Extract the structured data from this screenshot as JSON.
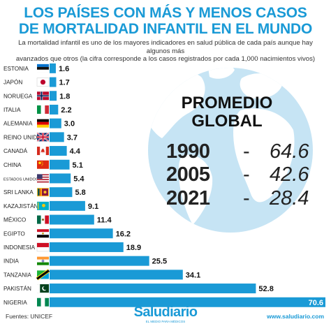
{
  "title_line1": "LOS PAÍSES CON MÁS Y MENOS CASOS",
  "title_line2": "DE MORTALIDAD INFANTIL EN EL MUNDO",
  "subtitle_line1": "La mortalidad infantil es uno de los mayores indicadores en salud pública de cada país aunque hay algunos más",
  "subtitle_line2": "avanzados que otros (la cifra corresponde a los casos registrados por cada 1,000 nacimientos vivos)",
  "average": {
    "title_line1": "PROMEDIO",
    "title_line2": "GLOBAL",
    "dash": "-",
    "rows": [
      {
        "year": "1990",
        "value": "64.6"
      },
      {
        "year": "2005",
        "value": "42.6"
      },
      {
        "year": "2021",
        "value": "28.4"
      }
    ]
  },
  "footer": {
    "source": "Fuentes: UNICEF",
    "logo": "Saludiario",
    "logo_sub": "EL MEDIO PARA MÉDICOS",
    "url": "www.saludiario.com"
  },
  "colors": {
    "accent": "#1a9ad6",
    "bar": "#1a9ad6",
    "ocean": "#c6e4f4",
    "land": "#ffffff"
  },
  "chart_data": {
    "type": "bar",
    "orientation": "horizontal",
    "categories": [
      "ESTONIA",
      "JAPÓN",
      "NORUEGA",
      "ITALIA",
      "ALEMANIA",
      "REINO UNIDO",
      "CANADÁ",
      "CHINA",
      "ESTADOS UNIDOS",
      "SRI LANKA",
      "KAZAJISTÁN",
      "MÉXICO",
      "EGIPTO",
      "INDONESIA",
      "INDIA",
      "TANZANIA",
      "PAKISTÁN",
      "NIGERIA"
    ],
    "values": [
      1.6,
      1.7,
      1.8,
      2.2,
      3.0,
      3.7,
      4.4,
      5.1,
      5.4,
      5.8,
      9.1,
      11.4,
      16.2,
      18.9,
      25.5,
      34.1,
      52.8,
      70.6
    ],
    "value_labels": [
      "1.6",
      "1.7",
      "1.8",
      "2.2",
      "3.0",
      "3.7",
      "4.4",
      "5.1",
      "5.4",
      "5.8",
      "9.1",
      "11.4",
      "16.2",
      "18.9",
      "25.5",
      "34.1",
      "52.8",
      "70.6"
    ],
    "flag_icons": [
      "estonia-flag-icon",
      "japan-flag-icon",
      "norway-flag-icon",
      "italy-flag-icon",
      "germany-flag-icon",
      "uk-flag-icon",
      "canada-flag-icon",
      "china-flag-icon",
      "usa-flag-icon",
      "srilanka-flag-icon",
      "kazakhstan-flag-icon",
      "mexico-flag-icon",
      "egypt-flag-icon",
      "indonesia-flag-icon",
      "india-flag-icon",
      "tanzania-flag-icon",
      "pakistan-flag-icon",
      "nigeria-flag-icon"
    ],
    "xlim": [
      0,
      70.6
    ],
    "grid": false,
    "legend": false
  }
}
